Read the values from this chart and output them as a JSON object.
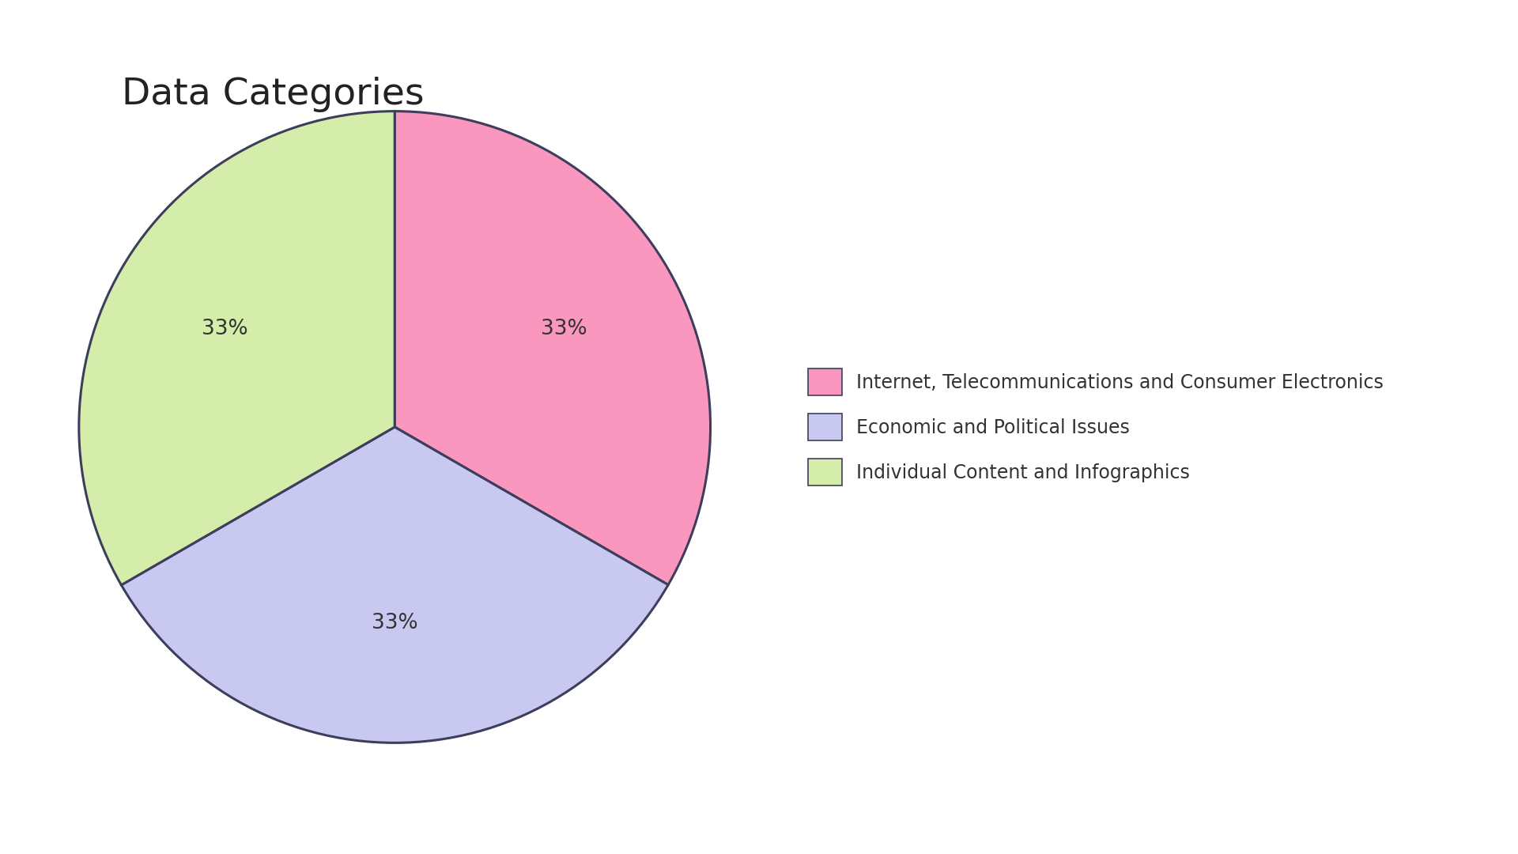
{
  "title": "Data Categories",
  "slices": [
    33.33,
    33.33,
    33.34
  ],
  "labels": [
    "33%",
    "33%",
    "33%"
  ],
  "colors": [
    "#F997BE",
    "#C8C8F0",
    "#D4EDAA"
  ],
  "legend_labels": [
    "Internet, Telecommunications and Consumer Electronics",
    "Economic and Political Issues",
    "Individual Content and Infographics"
  ],
  "edge_color": "#3d3d5c",
  "edge_linewidth": 2.2,
  "background_color": "#ffffff",
  "title_fontsize": 34,
  "label_fontsize": 19,
  "legend_fontsize": 17,
  "startangle": 90,
  "label_distance": 0.62
}
